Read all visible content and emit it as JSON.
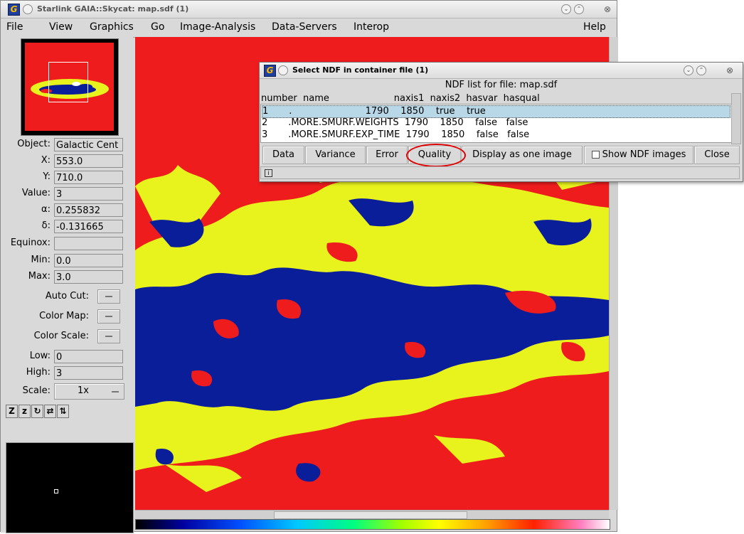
{
  "main_window": {
    "title": "Starlink GAIA::Skycat: map.sdf (1)",
    "menus": [
      "File",
      "View",
      "Graphics",
      "Go",
      "Image-Analysis",
      "Data-Servers",
      "Interop",
      "Help"
    ]
  },
  "info_panel": {
    "object_label": "Object:",
    "object_value": "Galactic Cent",
    "x_label": "X:",
    "x_value": "553.0",
    "y_label": "Y:",
    "y_value": "710.0",
    "value_label": "Value:",
    "value_value": "3",
    "alpha_label": "α:",
    "alpha_value": "0.255832",
    "delta_label": "δ:",
    "delta_value": "-0.131665",
    "equinox_label": "Equinox:",
    "equinox_value": "",
    "min_label": "Min:",
    "min_value": "0.0",
    "max_label": "Max:",
    "max_value": "3.0",
    "autocut_label": "Auto Cut:",
    "colormap_label": "Color Map:",
    "colorscale_label": "Color Scale:",
    "low_label": "Low:",
    "low_value": "0",
    "high_label": "High:",
    "high_value": "3",
    "scale_label": "Scale:",
    "scale_value": "1x"
  },
  "toolbar_glyphs": [
    "Z",
    "z",
    "↻",
    "⇄",
    "⇅"
  ],
  "colors": {
    "image_red": "#ee1c1c",
    "image_yellow": "#e8f21c",
    "image_blue": "#0a1e9a",
    "highlight": "#e00000"
  },
  "dialog": {
    "title": "Select NDF in container file (1)",
    "header": "NDF list for file: map.sdf",
    "columns": "number  name                      naxis1  naxis2  hasvar  hasqual",
    "rows": [
      "1       .                         1790    1850    true    true",
      "2       .MORE.SMURF.WEIGHTS  1790    1850    false   false",
      "3       .MORE.SMURF.EXP_TIME  1790    1850    false   false"
    ],
    "buttons": {
      "data": "Data",
      "variance": "Variance",
      "error": "Error",
      "quality": "Quality",
      "display": "Display as one image",
      "show_ndf": "Show NDF images",
      "close": "Close"
    },
    "status_icon": "i"
  }
}
